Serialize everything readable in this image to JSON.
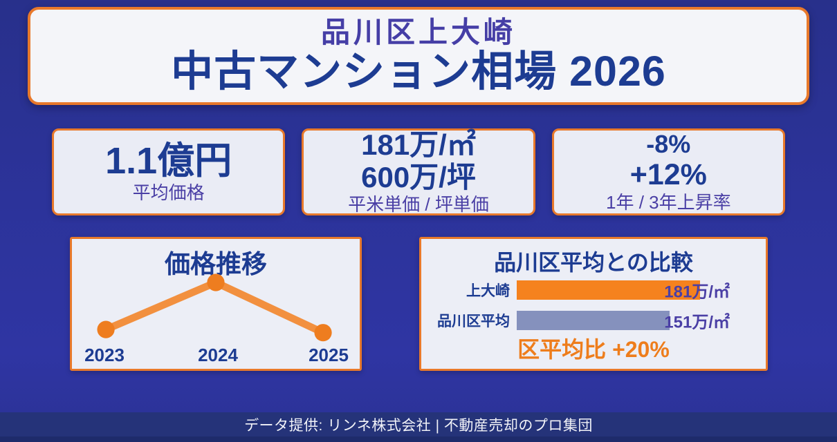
{
  "header": {
    "subtitle": "品川区上大崎",
    "title": "中古マンション相場 2026"
  },
  "stats": [
    {
      "value_lines": [
        "1.1億円"
      ],
      "label": "平均価格"
    },
    {
      "value_lines": [
        "181万/㎡",
        "600万/坪"
      ],
      "label": "平米単価 / 坪単価"
    },
    {
      "value_lines": [
        "-8%",
        "+12%"
      ],
      "label": "1年 / 3年上昇率"
    }
  ],
  "chart_data": [
    {
      "type": "line",
      "title": "価格推移",
      "categories": [
        "2023",
        "2024",
        "2025"
      ],
      "values": [
        182,
        197,
        181
      ],
      "unit": "万円/㎡ (estimated from bar chart scale; no y-axis shown)",
      "grid": false,
      "line_color": "#f2903f",
      "point_color": "#ee7d1f"
    },
    {
      "type": "bar",
      "orientation": "horizontal",
      "title": "品川区平均との比較",
      "categories": [
        "上大崎",
        "品川区平均"
      ],
      "values": [
        181,
        151
      ],
      "value_labels": [
        "181万/㎡",
        "151万/㎡"
      ],
      "bar_colors": [
        "#f5821e",
        "#8591bd"
      ],
      "xlim": [
        0,
        238
      ],
      "footer": "区平均比 +20%"
    }
  ],
  "footer": {
    "text": "データ提供: リンネ株式会社 | 不動産売却のプロ集団"
  },
  "colors": {
    "background_blue": "#2c339a",
    "card_border_orange": "#e8792b",
    "card_background": "#eceef6",
    "navy_text": "#1d3c92",
    "indigo_text": "#4a3fa5",
    "bar_orange": "#f5821e",
    "bar_gray": "#8591bd",
    "note_orange": "#ee7d1c",
    "footer_band": "#253379",
    "footer_text": "#f2f3f8"
  }
}
